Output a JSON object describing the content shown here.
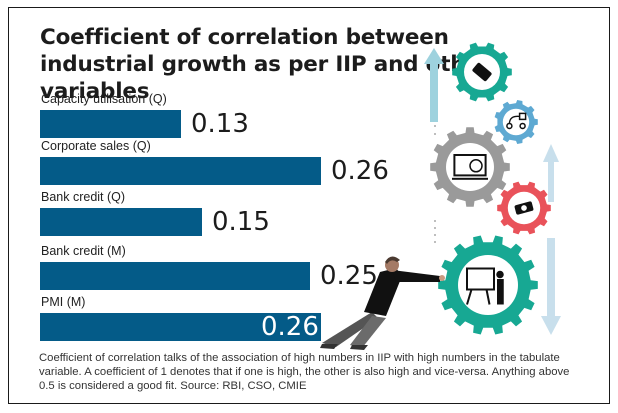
{
  "chart_data": {
    "type": "bar",
    "orientation": "horizontal",
    "title": "Coefficient of correlation between industrial growth as per IIP and other variables",
    "categories": [
      "Capacity utilisation (Q)",
      "Corporate sales (Q)",
      "Bank credit (Q)",
      "Bank credit (M)",
      "PMI (M)"
    ],
    "values": [
      0.13,
      0.26,
      0.15,
      0.25,
      0.26
    ],
    "value_labels": [
      "0.13",
      "0.26",
      "0.15",
      "0.25",
      "0.26"
    ],
    "xlabel": "",
    "ylabel": "",
    "xlim": [
      0,
      0.26
    ],
    "grid": false,
    "legend": "none",
    "bar_color": "#045b88",
    "footnote": "Coefficient of correlation talks of the association of high numbers in IIP with high numbers in the tabulate variable. A coefficient of 1 denotes that if one is high, the other is also high and vice-versa. Anything above 0.5 is considered a good fit. Source: RBI, CSO, CMIE"
  },
  "illustration": {
    "gears": [
      {
        "color": "#17a893",
        "icon": "price-tag-icon"
      },
      {
        "color": "#5ea9d2",
        "icon": "workflow-icon"
      },
      {
        "color": "#9a9a9a",
        "icon": "analytics-monitor-icon"
      },
      {
        "color": "#e9525a",
        "icon": "cash-icon"
      },
      {
        "color": "#17a893",
        "icon": "presentation-icon"
      }
    ],
    "arrow_colors": {
      "up_left": "#9ed2de",
      "right": "#c8dfec"
    }
  }
}
